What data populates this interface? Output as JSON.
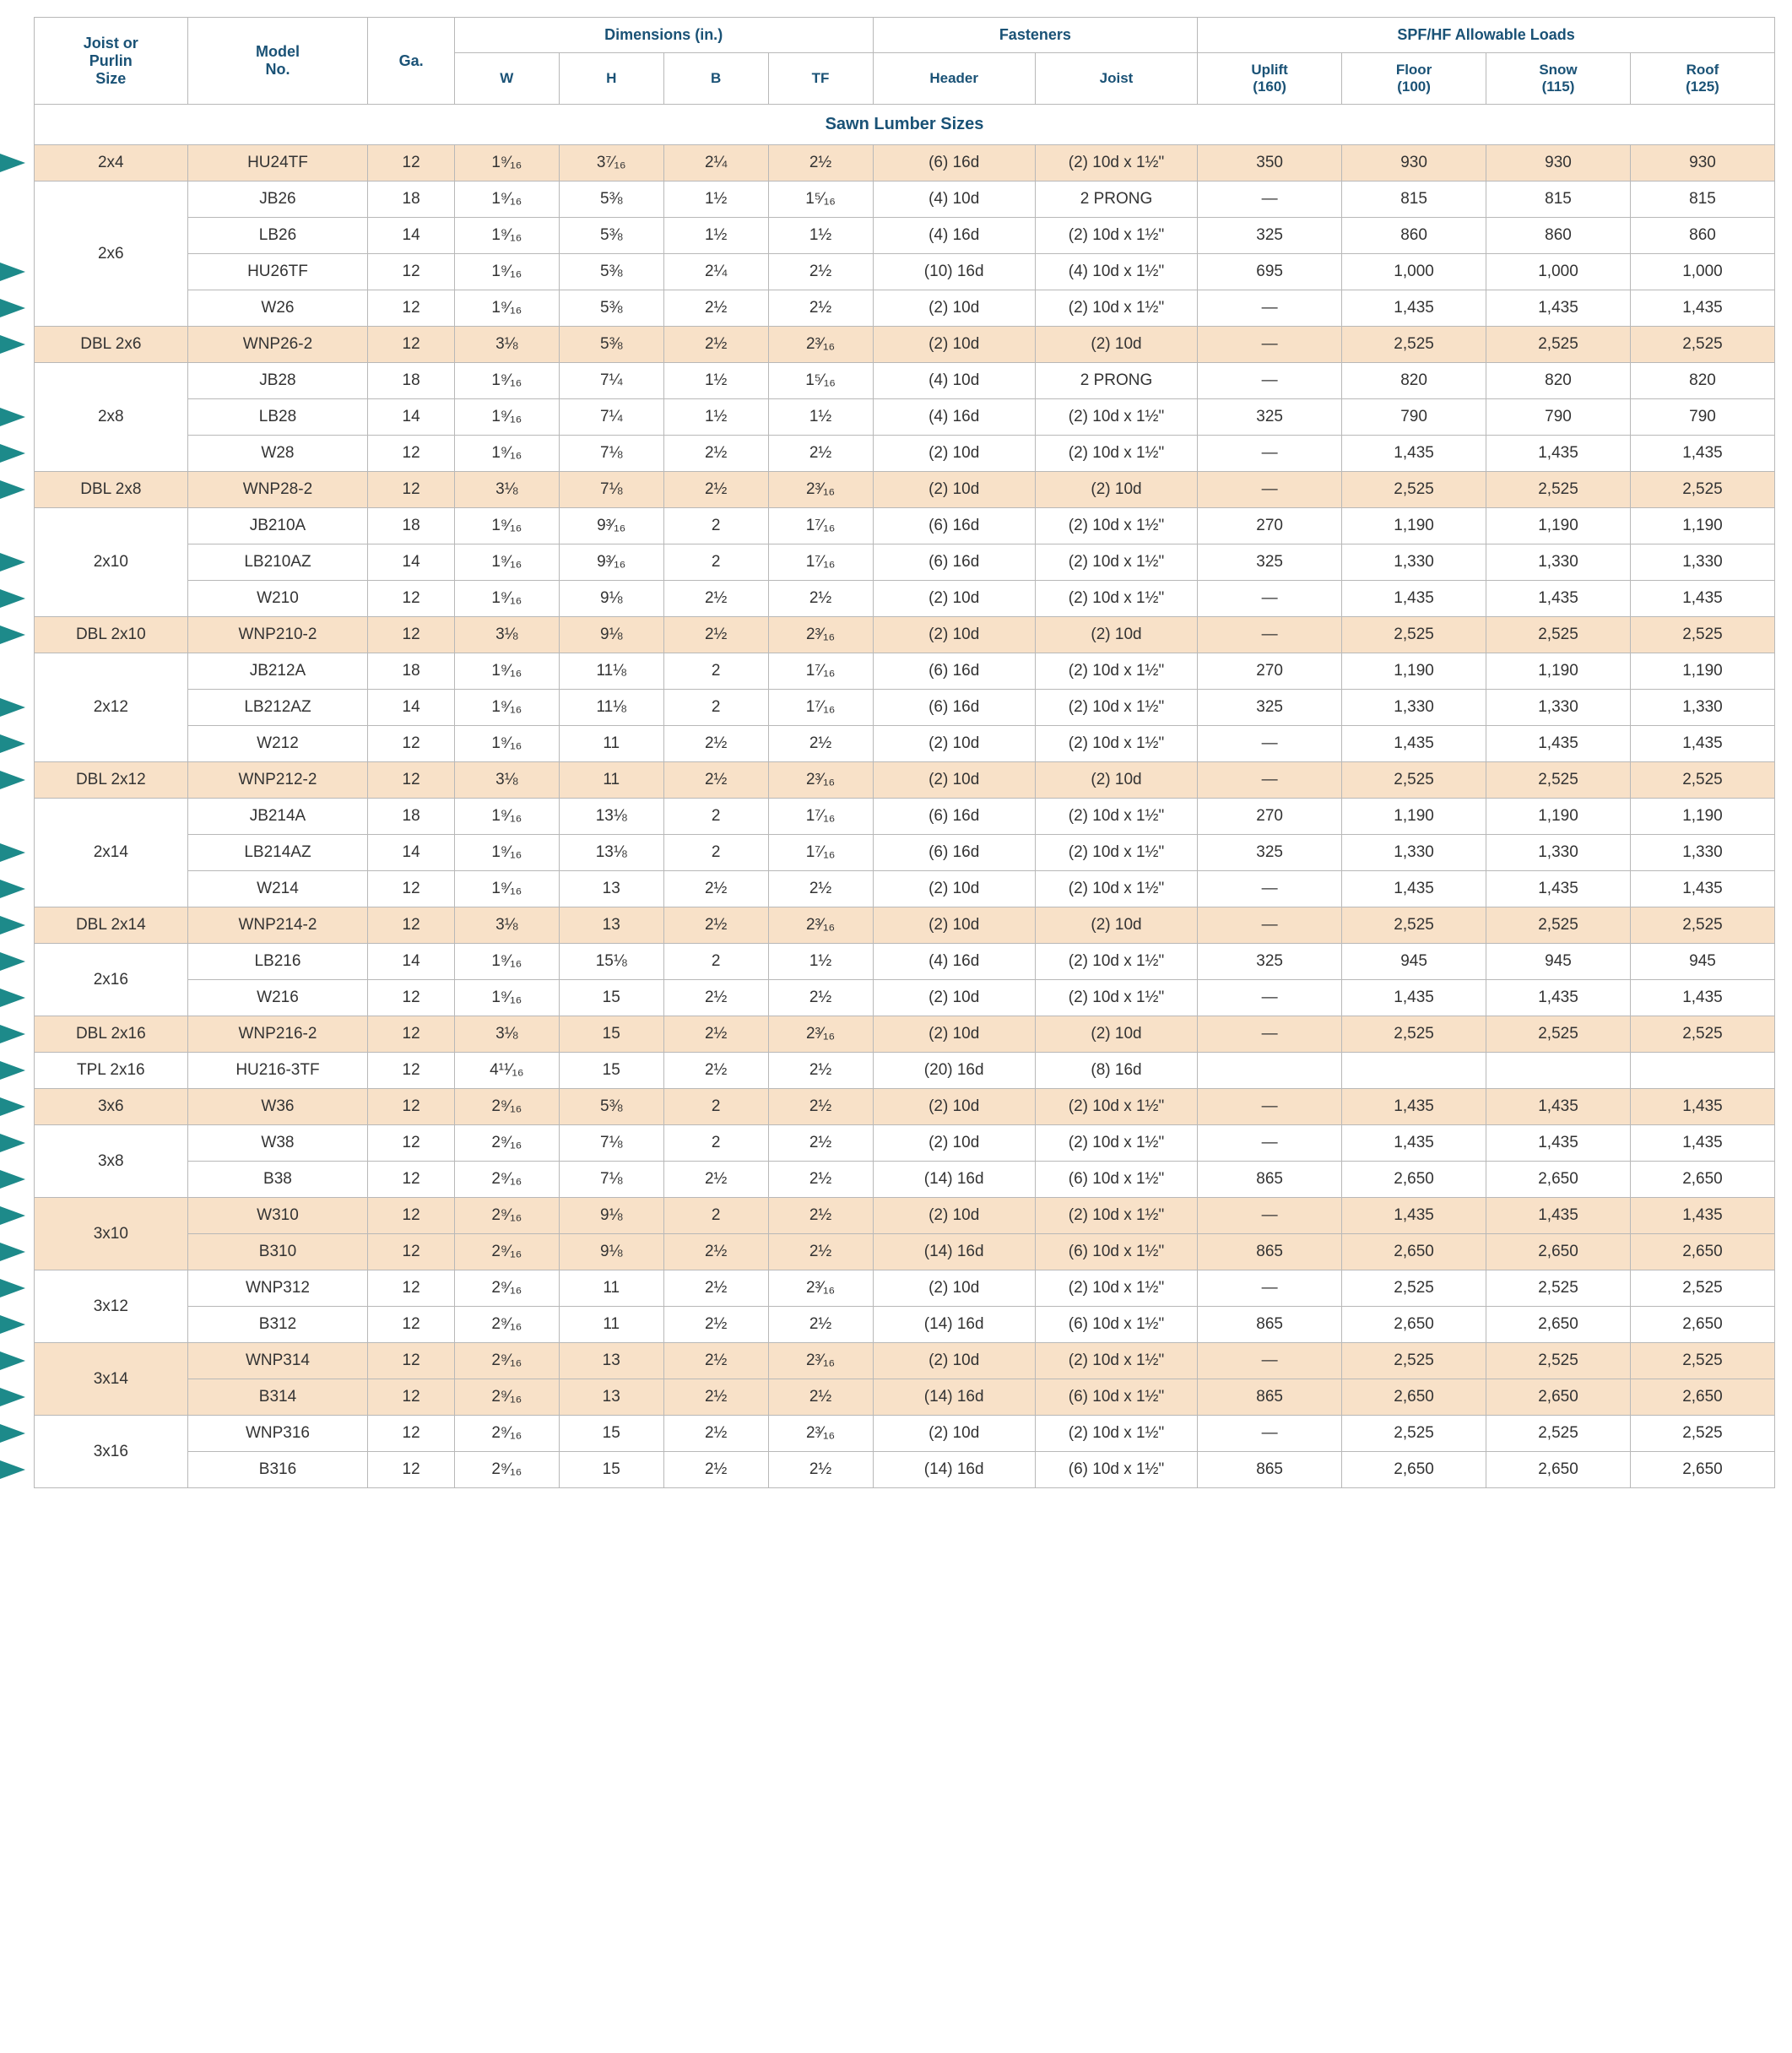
{
  "headers": {
    "size": "Joist or\nPurlin\nSize",
    "model": "Model\nNo.",
    "ga": "Ga.",
    "dims": "Dimensions (in.)",
    "W": "W",
    "H": "H",
    "B": "B",
    "TF": "TF",
    "fasteners": "Fasteners",
    "header_f": "Header",
    "joist_f": "Joist",
    "loads": "SPF/HF Allowable Loads",
    "uplift": "Uplift\n(160)",
    "floor": "Floor\n(100)",
    "snow": "Snow\n(115)",
    "roof": "Roof\n(125)"
  },
  "section_title": "Sawn Lumber Sizes",
  "colors": {
    "shaded_bg": "#f8e1c8",
    "plain_bg": "#ffffff",
    "header_text": "#1a5276",
    "grid": "#b8b8b8",
    "arrow": "#1d8a8a"
  },
  "groups": [
    {
      "size": "2x4",
      "shade": true,
      "arrows": [
        0
      ],
      "rows": [
        {
          "model": "HU24TF",
          "ga": "12",
          "W": "1⁹⁄₁₆",
          "H": "3⁷⁄₁₆",
          "B": "2¼",
          "TF": "2½",
          "hf": "(6) 16d",
          "jf": "(2) 10d x 1½\"",
          "u": "350",
          "f": "930",
          "s": "930",
          "r": "930"
        }
      ]
    },
    {
      "size": "2x6",
      "shade": false,
      "arrows": [
        2,
        3
      ],
      "rows": [
        {
          "model": "JB26",
          "ga": "18",
          "W": "1⁹⁄₁₆",
          "H": "5⅜",
          "B": "1½",
          "TF": "1⁵⁄₁₆",
          "hf": "(4) 10d",
          "jf": "2 PRONG",
          "u": "—",
          "f": "815",
          "s": "815",
          "r": "815"
        },
        {
          "model": "LB26",
          "ga": "14",
          "W": "1⁹⁄₁₆",
          "H": "5⅜",
          "B": "1½",
          "TF": "1½",
          "hf": "(4) 16d",
          "jf": "(2) 10d x 1½\"",
          "u": "325",
          "f": "860",
          "s": "860",
          "r": "860"
        },
        {
          "model": "HU26TF",
          "ga": "12",
          "W": "1⁹⁄₁₆",
          "H": "5⅜",
          "B": "2¼",
          "TF": "2½",
          "hf": "(10) 16d",
          "jf": "(4) 10d x 1½\"",
          "u": "695",
          "f": "1,000",
          "s": "1,000",
          "r": "1,000"
        },
        {
          "model": "W26",
          "ga": "12",
          "W": "1⁹⁄₁₆",
          "H": "5⅜",
          "B": "2½",
          "TF": "2½",
          "hf": "(2) 10d",
          "jf": "(2) 10d x 1½\"",
          "u": "—",
          "f": "1,435",
          "s": "1,435",
          "r": "1,435"
        }
      ]
    },
    {
      "size": "DBL 2x6",
      "shade": true,
      "arrows": [
        0
      ],
      "rows": [
        {
          "model": "WNP26-2",
          "ga": "12",
          "W": "3⅛",
          "H": "5⅜",
          "B": "2½",
          "TF": "2³⁄₁₆",
          "hf": "(2) 10d",
          "jf": "(2) 10d",
          "u": "—",
          "f": "2,525",
          "s": "2,525",
          "r": "2,525"
        }
      ]
    },
    {
      "size": "2x8",
      "shade": false,
      "arrows": [
        1,
        2
      ],
      "rows": [
        {
          "model": "JB28",
          "ga": "18",
          "W": "1⁹⁄₁₆",
          "H": "7¼",
          "B": "1½",
          "TF": "1⁵⁄₁₆",
          "hf": "(4) 10d",
          "jf": "2 PRONG",
          "u": "—",
          "f": "820",
          "s": "820",
          "r": "820"
        },
        {
          "model": "LB28",
          "ga": "14",
          "W": "1⁹⁄₁₆",
          "H": "7¼",
          "B": "1½",
          "TF": "1½",
          "hf": "(4) 16d",
          "jf": "(2) 10d x 1½\"",
          "u": "325",
          "f": "790",
          "s": "790",
          "r": "790"
        },
        {
          "model": "W28",
          "ga": "12",
          "W": "1⁹⁄₁₆",
          "H": "7⅛",
          "B": "2½",
          "TF": "2½",
          "hf": "(2) 10d",
          "jf": "(2) 10d x 1½\"",
          "u": "—",
          "f": "1,435",
          "s": "1,435",
          "r": "1,435"
        }
      ]
    },
    {
      "size": "DBL 2x8",
      "shade": true,
      "arrows": [
        0
      ],
      "rows": [
        {
          "model": "WNP28-2",
          "ga": "12",
          "W": "3⅛",
          "H": "7⅛",
          "B": "2½",
          "TF": "2³⁄₁₆",
          "hf": "(2) 10d",
          "jf": "(2) 10d",
          "u": "—",
          "f": "2,525",
          "s": "2,525",
          "r": "2,525"
        }
      ]
    },
    {
      "size": "2x10",
      "shade": false,
      "arrows": [
        1,
        2
      ],
      "rows": [
        {
          "model": "JB210A",
          "ga": "18",
          "W": "1⁹⁄₁₆",
          "H": "9³⁄₁₆",
          "B": "2",
          "TF": "1⁷⁄₁₆",
          "hf": "(6) 16d",
          "jf": "(2) 10d x 1½\"",
          "u": "270",
          "f": "1,190",
          "s": "1,190",
          "r": "1,190"
        },
        {
          "model": "LB210AZ",
          "ga": "14",
          "W": "1⁹⁄₁₆",
          "H": "9³⁄₁₆",
          "B": "2",
          "TF": "1⁷⁄₁₆",
          "hf": "(6) 16d",
          "jf": "(2) 10d x 1½\"",
          "u": "325",
          "f": "1,330",
          "s": "1,330",
          "r": "1,330"
        },
        {
          "model": "W210",
          "ga": "12",
          "W": "1⁹⁄₁₆",
          "H": "9⅛",
          "B": "2½",
          "TF": "2½",
          "hf": "(2) 10d",
          "jf": "(2) 10d x 1½\"",
          "u": "—",
          "f": "1,435",
          "s": "1,435",
          "r": "1,435"
        }
      ]
    },
    {
      "size": "DBL 2x10",
      "shade": true,
      "arrows": [
        0
      ],
      "rows": [
        {
          "model": "WNP210-2",
          "ga": "12",
          "W": "3⅛",
          "H": "9⅛",
          "B": "2½",
          "TF": "2³⁄₁₆",
          "hf": "(2) 10d",
          "jf": "(2) 10d",
          "u": "—",
          "f": "2,525",
          "s": "2,525",
          "r": "2,525"
        }
      ]
    },
    {
      "size": "2x12",
      "shade": false,
      "arrows": [
        1,
        2
      ],
      "rows": [
        {
          "model": "JB212A",
          "ga": "18",
          "W": "1⁹⁄₁₆",
          "H": "11⅛",
          "B": "2",
          "TF": "1⁷⁄₁₆",
          "hf": "(6) 16d",
          "jf": "(2) 10d x 1½\"",
          "u": "270",
          "f": "1,190",
          "s": "1,190",
          "r": "1,190"
        },
        {
          "model": "LB212AZ",
          "ga": "14",
          "W": "1⁹⁄₁₆",
          "H": "11⅛",
          "B": "2",
          "TF": "1⁷⁄₁₆",
          "hf": "(6) 16d",
          "jf": "(2) 10d x 1½\"",
          "u": "325",
          "f": "1,330",
          "s": "1,330",
          "r": "1,330"
        },
        {
          "model": "W212",
          "ga": "12",
          "W": "1⁹⁄₁₆",
          "H": "11",
          "B": "2½",
          "TF": "2½",
          "hf": "(2) 10d",
          "jf": "(2) 10d x 1½\"",
          "u": "—",
          "f": "1,435",
          "s": "1,435",
          "r": "1,435"
        }
      ]
    },
    {
      "size": "DBL 2x12",
      "shade": true,
      "arrows": [
        0
      ],
      "rows": [
        {
          "model": "WNP212-2",
          "ga": "12",
          "W": "3⅛",
          "H": "11",
          "B": "2½",
          "TF": "2³⁄₁₆",
          "hf": "(2) 10d",
          "jf": "(2) 10d",
          "u": "—",
          "f": "2,525",
          "s": "2,525",
          "r": "2,525"
        }
      ]
    },
    {
      "size": "2x14",
      "shade": false,
      "arrows": [
        1,
        2
      ],
      "rows": [
        {
          "model": "JB214A",
          "ga": "18",
          "W": "1⁹⁄₁₆",
          "H": "13⅛",
          "B": "2",
          "TF": "1⁷⁄₁₆",
          "hf": "(6) 16d",
          "jf": "(2) 10d x 1½\"",
          "u": "270",
          "f": "1,190",
          "s": "1,190",
          "r": "1,190"
        },
        {
          "model": "LB214AZ",
          "ga": "14",
          "W": "1⁹⁄₁₆",
          "H": "13⅛",
          "B": "2",
          "TF": "1⁷⁄₁₆",
          "hf": "(6) 16d",
          "jf": "(2) 10d x 1½\"",
          "u": "325",
          "f": "1,330",
          "s": "1,330",
          "r": "1,330"
        },
        {
          "model": "W214",
          "ga": "12",
          "W": "1⁹⁄₁₆",
          "H": "13",
          "B": "2½",
          "TF": "2½",
          "hf": "(2) 10d",
          "jf": "(2) 10d x 1½\"",
          "u": "—",
          "f": "1,435",
          "s": "1,435",
          "r": "1,435"
        }
      ]
    },
    {
      "size": "DBL 2x14",
      "shade": true,
      "arrows": [
        0
      ],
      "rows": [
        {
          "model": "WNP214-2",
          "ga": "12",
          "W": "3⅛",
          "H": "13",
          "B": "2½",
          "TF": "2³⁄₁₆",
          "hf": "(2) 10d",
          "jf": "(2) 10d",
          "u": "—",
          "f": "2,525",
          "s": "2,525",
          "r": "2,525"
        }
      ]
    },
    {
      "size": "2x16",
      "shade": false,
      "arrows": [
        0,
        1
      ],
      "rows": [
        {
          "model": "LB216",
          "ga": "14",
          "W": "1⁹⁄₁₆",
          "H": "15⅛",
          "B": "2",
          "TF": "1½",
          "hf": "(4) 16d",
          "jf": "(2) 10d x 1½\"",
          "u": "325",
          "f": "945",
          "s": "945",
          "r": "945"
        },
        {
          "model": "W216",
          "ga": "12",
          "W": "1⁹⁄₁₆",
          "H": "15",
          "B": "2½",
          "TF": "2½",
          "hf": "(2) 10d",
          "jf": "(2) 10d x 1½\"",
          "u": "—",
          "f": "1,435",
          "s": "1,435",
          "r": "1,435"
        }
      ]
    },
    {
      "size": "DBL 2x16",
      "shade": true,
      "arrows": [
        0
      ],
      "rows": [
        {
          "model": "WNP216-2",
          "ga": "12",
          "W": "3⅛",
          "H": "15",
          "B": "2½",
          "TF": "2³⁄₁₆",
          "hf": "(2) 10d",
          "jf": "(2) 10d",
          "u": "—",
          "f": "2,525",
          "s": "2,525",
          "r": "2,525"
        }
      ]
    },
    {
      "size": "TPL 2x16",
      "shade": false,
      "arrows": [
        0
      ],
      "rows": [
        {
          "model": "HU216-3TF",
          "ga": "12",
          "W": "4¹¹⁄₁₆",
          "H": "15",
          "B": "2½",
          "TF": "2½",
          "hf": "(20) 16d",
          "jf": "(8) 16d",
          "u": "",
          "f": "",
          "s": "",
          "r": ""
        }
      ]
    },
    {
      "size": "3x6",
      "shade": true,
      "arrows": [
        0
      ],
      "rows": [
        {
          "model": "W36",
          "ga": "12",
          "W": "2⁹⁄₁₆",
          "H": "5⅜",
          "B": "2",
          "TF": "2½",
          "hf": "(2) 10d",
          "jf": "(2) 10d x 1½\"",
          "u": "—",
          "f": "1,435",
          "s": "1,435",
          "r": "1,435"
        }
      ]
    },
    {
      "size": "3x8",
      "shade": false,
      "arrows": [
        0,
        1
      ],
      "rows": [
        {
          "model": "W38",
          "ga": "12",
          "W": "2⁹⁄₁₆",
          "H": "7⅛",
          "B": "2",
          "TF": "2½",
          "hf": "(2) 10d",
          "jf": "(2) 10d x 1½\"",
          "u": "—",
          "f": "1,435",
          "s": "1,435",
          "r": "1,435"
        },
        {
          "model": "B38",
          "ga": "12",
          "W": "2⁹⁄₁₆",
          "H": "7⅛",
          "B": "2½",
          "TF": "2½",
          "hf": "(14) 16d",
          "jf": "(6) 10d x 1½\"",
          "u": "865",
          "f": "2,650",
          "s": "2,650",
          "r": "2,650"
        }
      ]
    },
    {
      "size": "3x10",
      "shade": true,
      "arrows": [
        0,
        1
      ],
      "rows": [
        {
          "model": "W310",
          "ga": "12",
          "W": "2⁹⁄₁₆",
          "H": "9⅛",
          "B": "2",
          "TF": "2½",
          "hf": "(2) 10d",
          "jf": "(2) 10d x 1½\"",
          "u": "—",
          "f": "1,435",
          "s": "1,435",
          "r": "1,435"
        },
        {
          "model": "B310",
          "ga": "12",
          "W": "2⁹⁄₁₆",
          "H": "9⅛",
          "B": "2½",
          "TF": "2½",
          "hf": "(14) 16d",
          "jf": "(6) 10d x 1½\"",
          "u": "865",
          "f": "2,650",
          "s": "2,650",
          "r": "2,650"
        }
      ]
    },
    {
      "size": "3x12",
      "shade": false,
      "arrows": [
        0,
        1
      ],
      "rows": [
        {
          "model": "WNP312",
          "ga": "12",
          "W": "2⁹⁄₁₆",
          "H": "11",
          "B": "2½",
          "TF": "2³⁄₁₆",
          "hf": "(2) 10d",
          "jf": "(2) 10d x 1½\"",
          "u": "—",
          "f": "2,525",
          "s": "2,525",
          "r": "2,525"
        },
        {
          "model": "B312",
          "ga": "12",
          "W": "2⁹⁄₁₆",
          "H": "11",
          "B": "2½",
          "TF": "2½",
          "hf": "(14) 16d",
          "jf": "(6) 10d x 1½\"",
          "u": "865",
          "f": "2,650",
          "s": "2,650",
          "r": "2,650"
        }
      ]
    },
    {
      "size": "3x14",
      "shade": true,
      "arrows": [
        0,
        1
      ],
      "rows": [
        {
          "model": "WNP314",
          "ga": "12",
          "W": "2⁹⁄₁₆",
          "H": "13",
          "B": "2½",
          "TF": "2³⁄₁₆",
          "hf": "(2) 10d",
          "jf": "(2) 10d x 1½\"",
          "u": "—",
          "f": "2,525",
          "s": "2,525",
          "r": "2,525"
        },
        {
          "model": "B314",
          "ga": "12",
          "W": "2⁹⁄₁₆",
          "H": "13",
          "B": "2½",
          "TF": "2½",
          "hf": "(14) 16d",
          "jf": "(6) 10d x 1½\"",
          "u": "865",
          "f": "2,650",
          "s": "2,650",
          "r": "2,650"
        }
      ]
    },
    {
      "size": "3x16",
      "shade": false,
      "arrows": [
        0,
        1
      ],
      "rows": [
        {
          "model": "WNP316",
          "ga": "12",
          "W": "2⁹⁄₁₆",
          "H": "15",
          "B": "2½",
          "TF": "2³⁄₁₆",
          "hf": "(2) 10d",
          "jf": "(2) 10d x 1½\"",
          "u": "—",
          "f": "2,525",
          "s": "2,525",
          "r": "2,525"
        },
        {
          "model": "B316",
          "ga": "12",
          "W": "2⁹⁄₁₆",
          "H": "15",
          "B": "2½",
          "TF": "2½",
          "hf": "(14) 16d",
          "jf": "(6) 10d x 1½\"",
          "u": "865",
          "f": "2,650",
          "s": "2,650",
          "r": "2,650"
        }
      ]
    }
  ]
}
